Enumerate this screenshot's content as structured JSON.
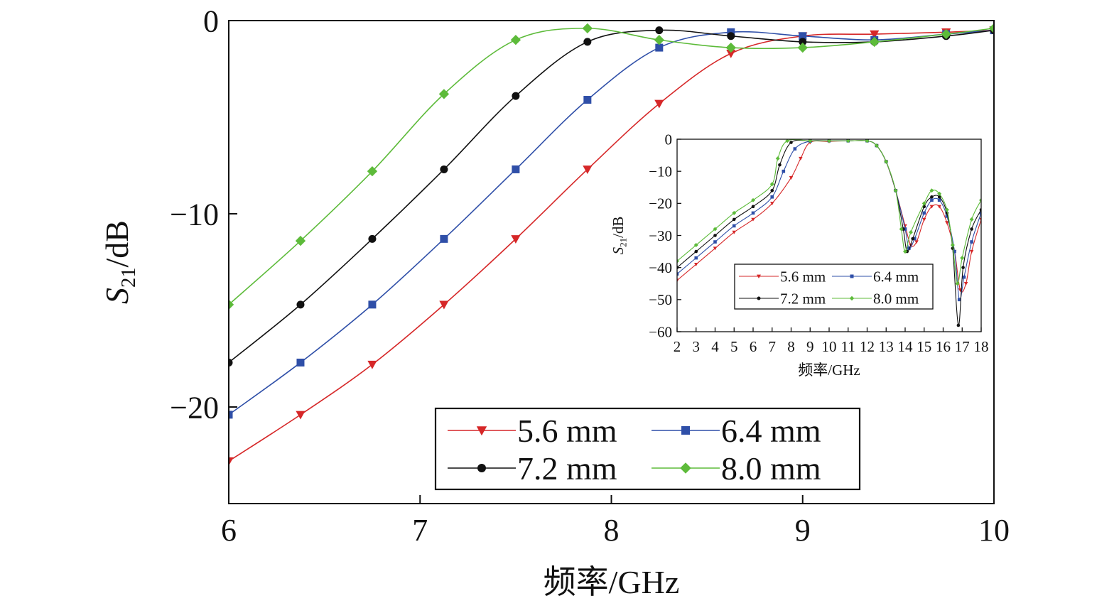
{
  "chart_data": [
    {
      "type": "line",
      "xlabel": "频率/GHz",
      "ylabel": {
        "main": "S",
        "sub": "21",
        "tail": "/dB"
      },
      "xlim": [
        6,
        10
      ],
      "ylim": [
        -25,
        0
      ],
      "x_ticks": [
        6,
        7,
        8,
        9,
        10
      ],
      "x_tick_labels": [
        "6",
        "7",
        "8",
        "9",
        "10"
      ],
      "y_ticks": [
        0,
        -10,
        -20
      ],
      "y_tick_labels": [
        "0",
        "−10",
        "−20"
      ],
      "grid": false,
      "legend_placement": "bottom-right",
      "series": [
        {
          "name": "5.6 mm",
          "color": "#d62728",
          "marker": "triangle-down",
          "x": [
            6.0,
            6.375,
            6.75,
            7.125,
            7.5,
            7.875,
            8.25,
            8.625,
            9.0,
            9.375,
            9.75,
            10.0
          ],
          "y": [
            -22.8,
            -20.4,
            -17.8,
            -14.7,
            -11.3,
            -7.7,
            -4.3,
            -1.7,
            -0.8,
            -0.7,
            -0.6,
            -0.5
          ]
        },
        {
          "name": "6.4 mm",
          "color": "#2f4fa8",
          "marker": "square",
          "x": [
            6.0,
            6.375,
            6.75,
            7.125,
            7.5,
            7.875,
            8.25,
            8.625,
            9.0,
            9.375,
            9.75,
            10.0
          ],
          "y": [
            -20.4,
            -17.7,
            -14.7,
            -11.3,
            -7.7,
            -4.1,
            -1.4,
            -0.6,
            -0.8,
            -1.0,
            -0.7,
            -0.5
          ]
        },
        {
          "name": "7.2 mm",
          "color": "#111111",
          "marker": "circle",
          "x": [
            6.0,
            6.375,
            6.75,
            7.125,
            7.5,
            7.875,
            8.25,
            8.625,
            9.0,
            9.375,
            9.75,
            10.0
          ],
          "y": [
            -17.7,
            -14.7,
            -11.3,
            -7.7,
            -3.9,
            -1.1,
            -0.5,
            -0.8,
            -1.1,
            -1.1,
            -0.8,
            -0.5
          ]
        },
        {
          "name": "8.0 mm",
          "color": "#5dbb3a",
          "marker": "diamond",
          "x": [
            6.0,
            6.375,
            6.75,
            7.125,
            7.5,
            7.875,
            8.25,
            8.625,
            9.0,
            9.375,
            9.75,
            10.0
          ],
          "y": [
            -14.7,
            -11.4,
            -7.8,
            -3.8,
            -1.0,
            -0.4,
            -1.0,
            -1.4,
            -1.4,
            -1.1,
            -0.7,
            -0.4
          ]
        }
      ]
    },
    {
      "type": "line",
      "xlabel": "频率/GHz",
      "ylabel": {
        "main": "S",
        "sub": "21",
        "tail": "/dB"
      },
      "xlim": [
        2,
        18
      ],
      "ylim": [
        -60,
        0
      ],
      "x_ticks": [
        2,
        3,
        4,
        5,
        6,
        7,
        8,
        9,
        10,
        11,
        12,
        13,
        14,
        15,
        16,
        17,
        18
      ],
      "x_tick_labels": [
        "2",
        "3",
        "4",
        "5",
        "6",
        "7",
        "8",
        "9",
        "10",
        "11",
        "12",
        "13",
        "14",
        "15",
        "16",
        "17",
        "18"
      ],
      "y_ticks": [
        0,
        -10,
        -20,
        -30,
        -40,
        -50,
        -60
      ],
      "y_tick_labels": [
        "0",
        "−10",
        "−20",
        "−30",
        "−40",
        "−50",
        "−60"
      ],
      "grid": false,
      "legend_placement": "bottom-center",
      "series": [
        {
          "name": "5.6 mm",
          "color": "#d62728",
          "marker": "triangle-down",
          "x": [
            2,
            3,
            4,
            5,
            6,
            7,
            8,
            8.5,
            9,
            10,
            11,
            12,
            12.5,
            13,
            13.5,
            14,
            14.3,
            14.6,
            15,
            15.4,
            15.8,
            16.2,
            16.6,
            16.9,
            17.2,
            17.5,
            18
          ],
          "y": [
            -44,
            -39,
            -34,
            -29,
            -25,
            -20,
            -12,
            -6,
            -1,
            -0.7,
            -0.5,
            -0.5,
            -2,
            -7,
            -16,
            -27,
            -33,
            -32,
            -25,
            -21,
            -21,
            -26,
            -35,
            -47,
            -45,
            -35,
            -25
          ]
        },
        {
          "name": "6.4 mm",
          "color": "#2f4fa8",
          "marker": "square",
          "x": [
            2,
            3,
            4,
            5,
            6,
            7,
            7.6,
            8.2,
            9,
            10,
            11,
            12,
            12.5,
            13,
            13.5,
            14,
            14.2,
            14.5,
            15,
            15.4,
            15.8,
            16.2,
            16.6,
            16.85,
            17.1,
            17.5,
            18
          ],
          "y": [
            -42,
            -37,
            -32,
            -27,
            -23,
            -18,
            -10,
            -3,
            -0.6,
            -0.5,
            -0.5,
            -0.5,
            -2,
            -7,
            -16,
            -28,
            -34,
            -31,
            -23,
            -19,
            -19,
            -24,
            -35,
            -50,
            -43,
            -32,
            -23
          ]
        },
        {
          "name": "7.2 mm",
          "color": "#111111",
          "marker": "circle",
          "x": [
            2,
            3,
            4,
            5,
            6,
            7,
            7.4,
            8,
            9,
            10,
            11,
            12,
            12.5,
            13,
            13.5,
            13.9,
            14.1,
            14.4,
            15,
            15.4,
            15.8,
            16.2,
            16.5,
            16.8,
            17.05,
            17.5,
            18
          ],
          "y": [
            -40,
            -35,
            -30,
            -25,
            -21,
            -16,
            -8,
            -1,
            -0.5,
            -0.5,
            -0.5,
            -0.5,
            -2,
            -7,
            -16,
            -28,
            -35,
            -31,
            -21,
            -18,
            -18,
            -23,
            -34,
            -58,
            -40,
            -28,
            -22
          ]
        },
        {
          "name": "8.0 mm",
          "color": "#5dbb3a",
          "marker": "diamond",
          "x": [
            2,
            3,
            4,
            5,
            6,
            7,
            7.3,
            7.8,
            9,
            10,
            11,
            12,
            12.5,
            13,
            13.5,
            13.8,
            14.0,
            14.3,
            15,
            15.4,
            15.8,
            16.2,
            16.5,
            16.75,
            17.0,
            17.5,
            18
          ],
          "y": [
            -38,
            -33,
            -28,
            -23,
            -19,
            -14,
            -6,
            -0.5,
            -0.5,
            -0.5,
            -0.5,
            -0.5,
            -2,
            -7,
            -16,
            -28,
            -35,
            -29,
            -20,
            -16,
            -17,
            -22,
            -33,
            -45,
            -37,
            -25,
            -19
          ]
        }
      ]
    }
  ]
}
